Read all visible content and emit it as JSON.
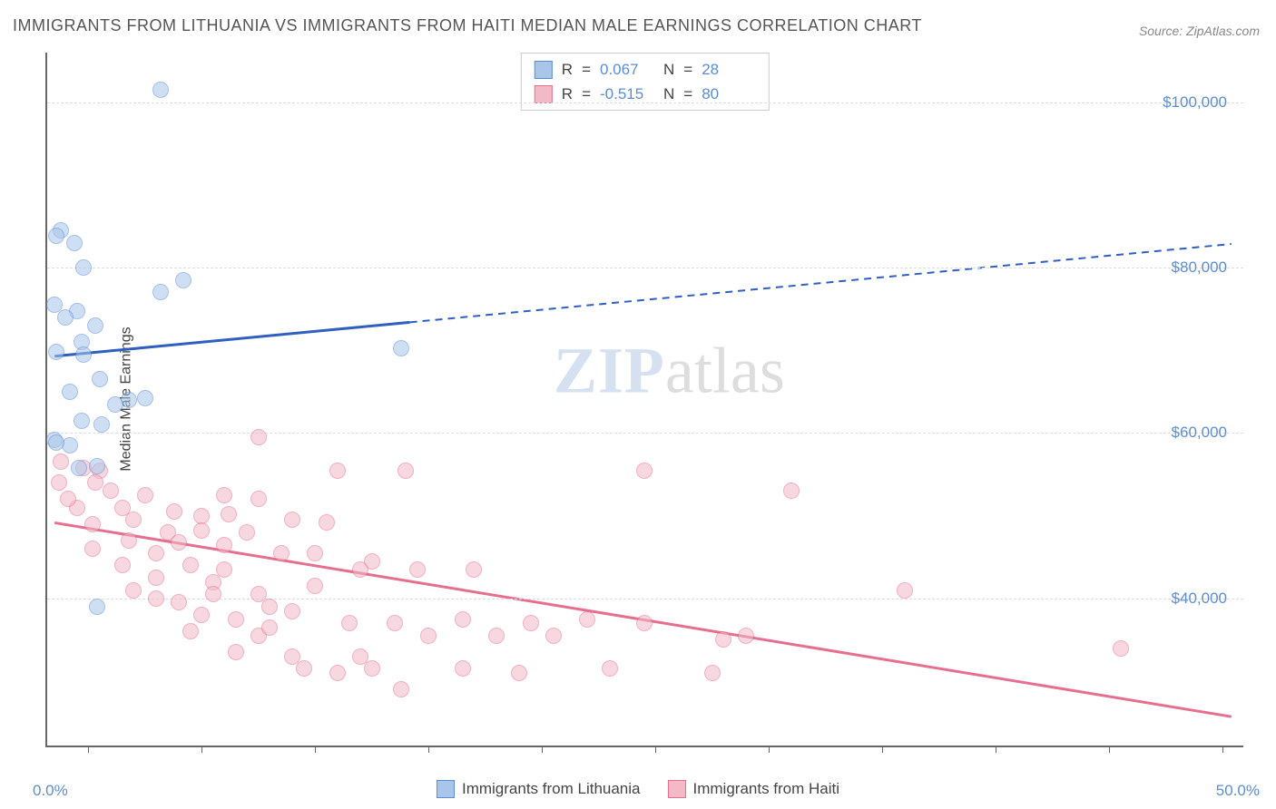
{
  "title": "IMMIGRANTS FROM LITHUANIA VS IMMIGRANTS FROM HAITI MEDIAN MALE EARNINGS CORRELATION CHART",
  "source_label": "Source: ZipAtlas.com",
  "y_axis_label": "Median Male Earnings",
  "watermark_bold": "ZIP",
  "watermark_rest": "atlas",
  "chart": {
    "type": "scatter-correlation",
    "background_color": "#ffffff",
    "grid_color": "#dddddd",
    "axis_color": "#666666",
    "text_color": "#444444",
    "tick_label_color": "#5b8dd6",
    "x_range_pct": [
      -1.8,
      51.0
    ],
    "y_range": [
      22000,
      106000
    ],
    "y_ticks": [
      40000,
      60000,
      80000,
      100000
    ],
    "y_tick_labels": [
      "$40,000",
      "$60,000",
      "$80,000",
      "$100,000"
    ],
    "x_ticks_pct": [
      0,
      5,
      10,
      15,
      20,
      25,
      30,
      35,
      40,
      45,
      50
    ],
    "x_min_label": "0.0%",
    "x_max_label": "50.0%",
    "point_radius": 9,
    "point_opacity": 0.55,
    "line_width_solid": 3,
    "line_width_dashed": 2,
    "dash_pattern": "8,6"
  },
  "series": {
    "lithuania": {
      "label": "Immigrants from Lithuania",
      "fill": "#a9c6ea",
      "stroke": "#5b8dd6",
      "line_color": "#2f5fbf",
      "R": "0.067",
      "N": "28",
      "trend": {
        "x1_pct": -1.5,
        "y1": 69200,
        "x2_pct": 50.5,
        "y2": 82800,
        "solid_end_pct": 14.2
      },
      "points": [
        {
          "x": 3.2,
          "y": 101500
        },
        {
          "x": -1.2,
          "y": 84500
        },
        {
          "x": -0.6,
          "y": 83000
        },
        {
          "x": -0.2,
          "y": 80000
        },
        {
          "x": 4.2,
          "y": 78500
        },
        {
          "x": 3.2,
          "y": 77000
        },
        {
          "x": -1.5,
          "y": 75500
        },
        {
          "x": -0.5,
          "y": 74800
        },
        {
          "x": 0.3,
          "y": 73000
        },
        {
          "x": -0.3,
          "y": 71000
        },
        {
          "x": -1.4,
          "y": 69800
        },
        {
          "x": -0.2,
          "y": 69500
        },
        {
          "x": 13.8,
          "y": 70200
        },
        {
          "x": 0.5,
          "y": 66500
        },
        {
          "x": -0.8,
          "y": 65000
        },
        {
          "x": 1.8,
          "y": 64000
        },
        {
          "x": 1.2,
          "y": 63500
        },
        {
          "x": 2.5,
          "y": 64200
        },
        {
          "x": -0.3,
          "y": 61500
        },
        {
          "x": 0.6,
          "y": 61000
        },
        {
          "x": -1.5,
          "y": 59200
        },
        {
          "x": -0.8,
          "y": 58500
        },
        {
          "x": 0.4,
          "y": 56000
        },
        {
          "x": -0.4,
          "y": 55800
        },
        {
          "x": 0.4,
          "y": 39000
        },
        {
          "x": -1.4,
          "y": 83800
        },
        {
          "x": -1.0,
          "y": 74000
        },
        {
          "x": -1.4,
          "y": 58800
        }
      ]
    },
    "haiti": {
      "label": "Immigrants from Haiti",
      "fill": "#f4b9c7",
      "stroke": "#e66f8f",
      "line_color": "#e66f8f",
      "R": "-0.515",
      "N": "80",
      "trend": {
        "x1_pct": -1.5,
        "y1": 49000,
        "x2_pct": 50.5,
        "y2": 25500,
        "solid_end_pct": 50.5
      },
      "points": [
        {
          "x": 7.5,
          "y": 59500
        },
        {
          "x": -1.2,
          "y": 56500
        },
        {
          "x": 0.5,
          "y": 55500
        },
        {
          "x": -0.2,
          "y": 55800
        },
        {
          "x": 11.0,
          "y": 55500
        },
        {
          "x": 14.0,
          "y": 55500
        },
        {
          "x": 24.5,
          "y": 55500
        },
        {
          "x": -1.3,
          "y": 54000
        },
        {
          "x": 0.3,
          "y": 54000
        },
        {
          "x": 1.0,
          "y": 53000
        },
        {
          "x": 31.0,
          "y": 53000
        },
        {
          "x": 6.0,
          "y": 52500
        },
        {
          "x": 7.5,
          "y": 52000
        },
        {
          "x": -0.5,
          "y": 51000
        },
        {
          "x": 1.5,
          "y": 51000
        },
        {
          "x": 3.8,
          "y": 50500
        },
        {
          "x": 5.0,
          "y": 50000
        },
        {
          "x": 6.2,
          "y": 50200
        },
        {
          "x": 2.0,
          "y": 49500
        },
        {
          "x": 0.2,
          "y": 49000
        },
        {
          "x": 9.0,
          "y": 49500
        },
        {
          "x": 10.5,
          "y": 49200
        },
        {
          "x": 3.5,
          "y": 48000
        },
        {
          "x": 5.0,
          "y": 48200
        },
        {
          "x": 7.0,
          "y": 48000
        },
        {
          "x": 1.8,
          "y": 47000
        },
        {
          "x": 4.0,
          "y": 46800
        },
        {
          "x": 6.0,
          "y": 46500
        },
        {
          "x": 0.2,
          "y": 46000
        },
        {
          "x": 3.0,
          "y": 45500
        },
        {
          "x": 8.5,
          "y": 45500
        },
        {
          "x": 10.0,
          "y": 45500
        },
        {
          "x": 12.5,
          "y": 44500
        },
        {
          "x": 1.5,
          "y": 44000
        },
        {
          "x": 4.5,
          "y": 44000
        },
        {
          "x": 6.0,
          "y": 43500
        },
        {
          "x": 12.0,
          "y": 43500
        },
        {
          "x": 14.5,
          "y": 43500
        },
        {
          "x": 17.0,
          "y": 43500
        },
        {
          "x": 3.0,
          "y": 42500
        },
        {
          "x": 5.5,
          "y": 42000
        },
        {
          "x": 36.0,
          "y": 41000
        },
        {
          "x": 2.0,
          "y": 41000
        },
        {
          "x": 5.5,
          "y": 40500
        },
        {
          "x": 7.5,
          "y": 40500
        },
        {
          "x": 4.0,
          "y": 39500
        },
        {
          "x": 8.0,
          "y": 39000
        },
        {
          "x": 5.0,
          "y": 38000
        },
        {
          "x": 6.5,
          "y": 37500
        },
        {
          "x": 9.0,
          "y": 38500
        },
        {
          "x": 11.5,
          "y": 37000
        },
        {
          "x": 13.5,
          "y": 37000
        },
        {
          "x": 16.5,
          "y": 37500
        },
        {
          "x": 19.5,
          "y": 37000
        },
        {
          "x": 22.0,
          "y": 37500
        },
        {
          "x": 24.5,
          "y": 37000
        },
        {
          "x": 4.5,
          "y": 36000
        },
        {
          "x": 7.5,
          "y": 35500
        },
        {
          "x": 15.0,
          "y": 35500
        },
        {
          "x": 18.0,
          "y": 35500
        },
        {
          "x": 20.5,
          "y": 35500
        },
        {
          "x": 28.0,
          "y": 35000
        },
        {
          "x": 29.0,
          "y": 35500
        },
        {
          "x": 6.5,
          "y": 33500
        },
        {
          "x": 9.0,
          "y": 33000
        },
        {
          "x": 12.0,
          "y": 33000
        },
        {
          "x": 45.5,
          "y": 34000
        },
        {
          "x": 9.5,
          "y": 31500
        },
        {
          "x": 11.0,
          "y": 31000
        },
        {
          "x": 12.5,
          "y": 31500
        },
        {
          "x": 16.5,
          "y": 31500
        },
        {
          "x": 19.0,
          "y": 31000
        },
        {
          "x": 23.0,
          "y": 31500
        },
        {
          "x": 27.5,
          "y": 31000
        },
        {
          "x": 13.8,
          "y": 29000
        },
        {
          "x": -0.9,
          "y": 52000
        },
        {
          "x": 2.5,
          "y": 52500
        },
        {
          "x": 3.0,
          "y": 40000
        },
        {
          "x": 10.0,
          "y": 41500
        },
        {
          "x": 8.0,
          "y": 36500
        }
      ]
    }
  },
  "legend": {
    "R_label": "R",
    "N_label": "N",
    "eq": "="
  }
}
